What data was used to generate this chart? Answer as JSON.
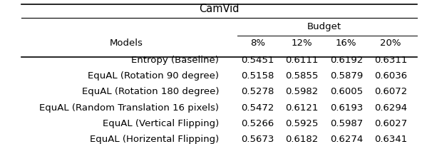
{
  "title": "CamVid",
  "col_group_label": "Budget",
  "col1_label": "Models",
  "budget_labels": [
    "8%",
    "12%",
    "16%",
    "20%"
  ],
  "rows": [
    [
      "Entropy (Baseline)",
      "0.5451",
      "0.6111",
      "0.6192",
      "0.6311"
    ],
    [
      "EquAL (Rotation 90 degree)",
      "0.5158",
      "0.5855",
      "0.5879",
      "0.6036"
    ],
    [
      "EquAL (Rotation 180 degree)",
      "0.5278",
      "0.5982",
      "0.6005",
      "0.6072"
    ],
    [
      "EquAL (Random Translation 16 pixels)",
      "0.5472",
      "0.6121",
      "0.6193",
      "0.6294"
    ],
    [
      "EquAL (Vertical Flipping)",
      "0.5266",
      "0.5925",
      "0.5987",
      "0.6027"
    ],
    [
      "EquAL (Horizental Flipping)",
      "0.5673",
      "0.6182",
      "0.6274",
      "0.6341"
    ]
  ],
  "background_color": "#ffffff",
  "font_size": 9.5,
  "title_font_size": 10.5
}
